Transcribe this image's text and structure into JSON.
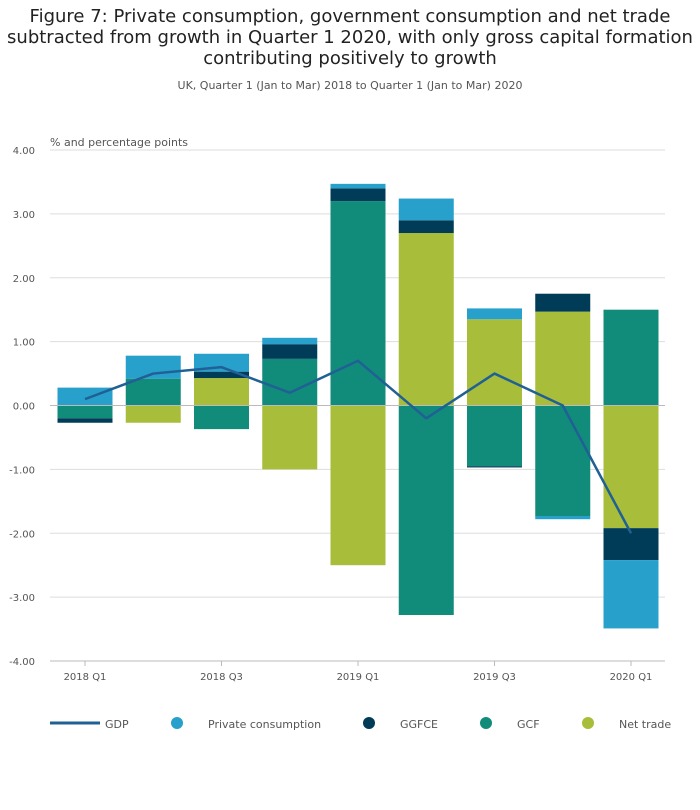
{
  "chart_data": {
    "type": "bar",
    "stacked": true,
    "title": "Figure 7: Private consumption, government consumption and net trade subtracted from growth in Quarter 1 2020, with only gross capital formation contributing positively to growth",
    "subtitle": "UK, Quarter 1 (Jan to Mar) 2018 to Quarter 1 (Jan to Mar) 2020",
    "ylabel": "% and percentage points",
    "ylim": [
      -4,
      4
    ],
    "yticks": [
      "4.00",
      "3.00",
      "2.00",
      "1.00",
      "0.00",
      "-1.00",
      "-2.00",
      "-3.00",
      "-4.00"
    ],
    "categories": [
      "2018 Q1",
      "2018 Q2",
      "2018 Q3",
      "2018 Q4",
      "2019 Q1",
      "2019 Q2",
      "2019 Q3",
      "2019 Q4",
      "2020 Q1"
    ],
    "xtick_labels": [
      "2018 Q1",
      "2018 Q3",
      "2019 Q1",
      "2019 Q3",
      "2020 Q1"
    ],
    "series": [
      {
        "name": "Net trade",
        "color": "#a8bd3a",
        "values": [
          0.0,
          -0.27,
          0.43,
          -1.0,
          -2.5,
          2.7,
          1.35,
          1.47,
          -1.92
        ]
      },
      {
        "name": "GCF",
        "color": "#118c7b",
        "values": [
          -0.2,
          0.42,
          -0.37,
          0.73,
          3.2,
          -3.28,
          -0.95,
          -1.73,
          1.5
        ]
      },
      {
        "name": "GGFCE",
        "color": "#003c57",
        "values": [
          -0.07,
          0.0,
          0.1,
          0.23,
          0.2,
          0.2,
          -0.02,
          0.28,
          -0.5
        ]
      },
      {
        "name": "Private consumption",
        "color": "#27a0cc",
        "values": [
          0.28,
          0.36,
          0.28,
          0.1,
          0.07,
          0.34,
          0.17,
          -0.05,
          -1.07
        ]
      }
    ],
    "line": {
      "name": "GDP",
      "color": "#206095",
      "values": [
        0.1,
        0.5,
        0.6,
        0.2,
        0.7,
        -0.2,
        0.5,
        0.0,
        -2.0
      ]
    },
    "legend": [
      "GDP",
      "Private consumption",
      "GGFCE",
      "GCF",
      "Net trade"
    ]
  }
}
